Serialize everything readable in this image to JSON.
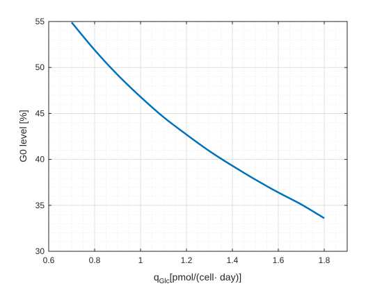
{
  "chart_data": {
    "type": "line",
    "title": "",
    "xlabel_main": "q",
    "xlabel_sub": "Glc",
    "xlabel_unit": "[pmol/(cell· day)]",
    "ylabel": "G0 level [%]",
    "xlim": [
      0.6,
      1.9
    ],
    "ylim": [
      30,
      55
    ],
    "x_ticks": [
      0.6,
      0.8,
      1.0,
      1.2,
      1.4,
      1.6,
      1.8
    ],
    "x_tick_labels": [
      "0.6",
      "0.8",
      "1",
      "1.2",
      "1.4",
      "1.6",
      "1.8"
    ],
    "y_ticks": [
      30,
      35,
      40,
      45,
      50,
      55
    ],
    "y_tick_labels": [
      "30",
      "35",
      "40",
      "45",
      "50",
      "55"
    ],
    "grid": true,
    "minor_grid": true,
    "series": [
      {
        "color": "#0072BD",
        "x": [
          0.7,
          0.8,
          0.9,
          1.0,
          1.1,
          1.2,
          1.3,
          1.4,
          1.5,
          1.6,
          1.7,
          1.8
        ],
        "y": [
          54.9,
          51.9,
          49.2,
          46.8,
          44.6,
          42.7,
          40.9,
          39.3,
          37.8,
          36.4,
          35.1,
          33.6
        ]
      }
    ]
  }
}
